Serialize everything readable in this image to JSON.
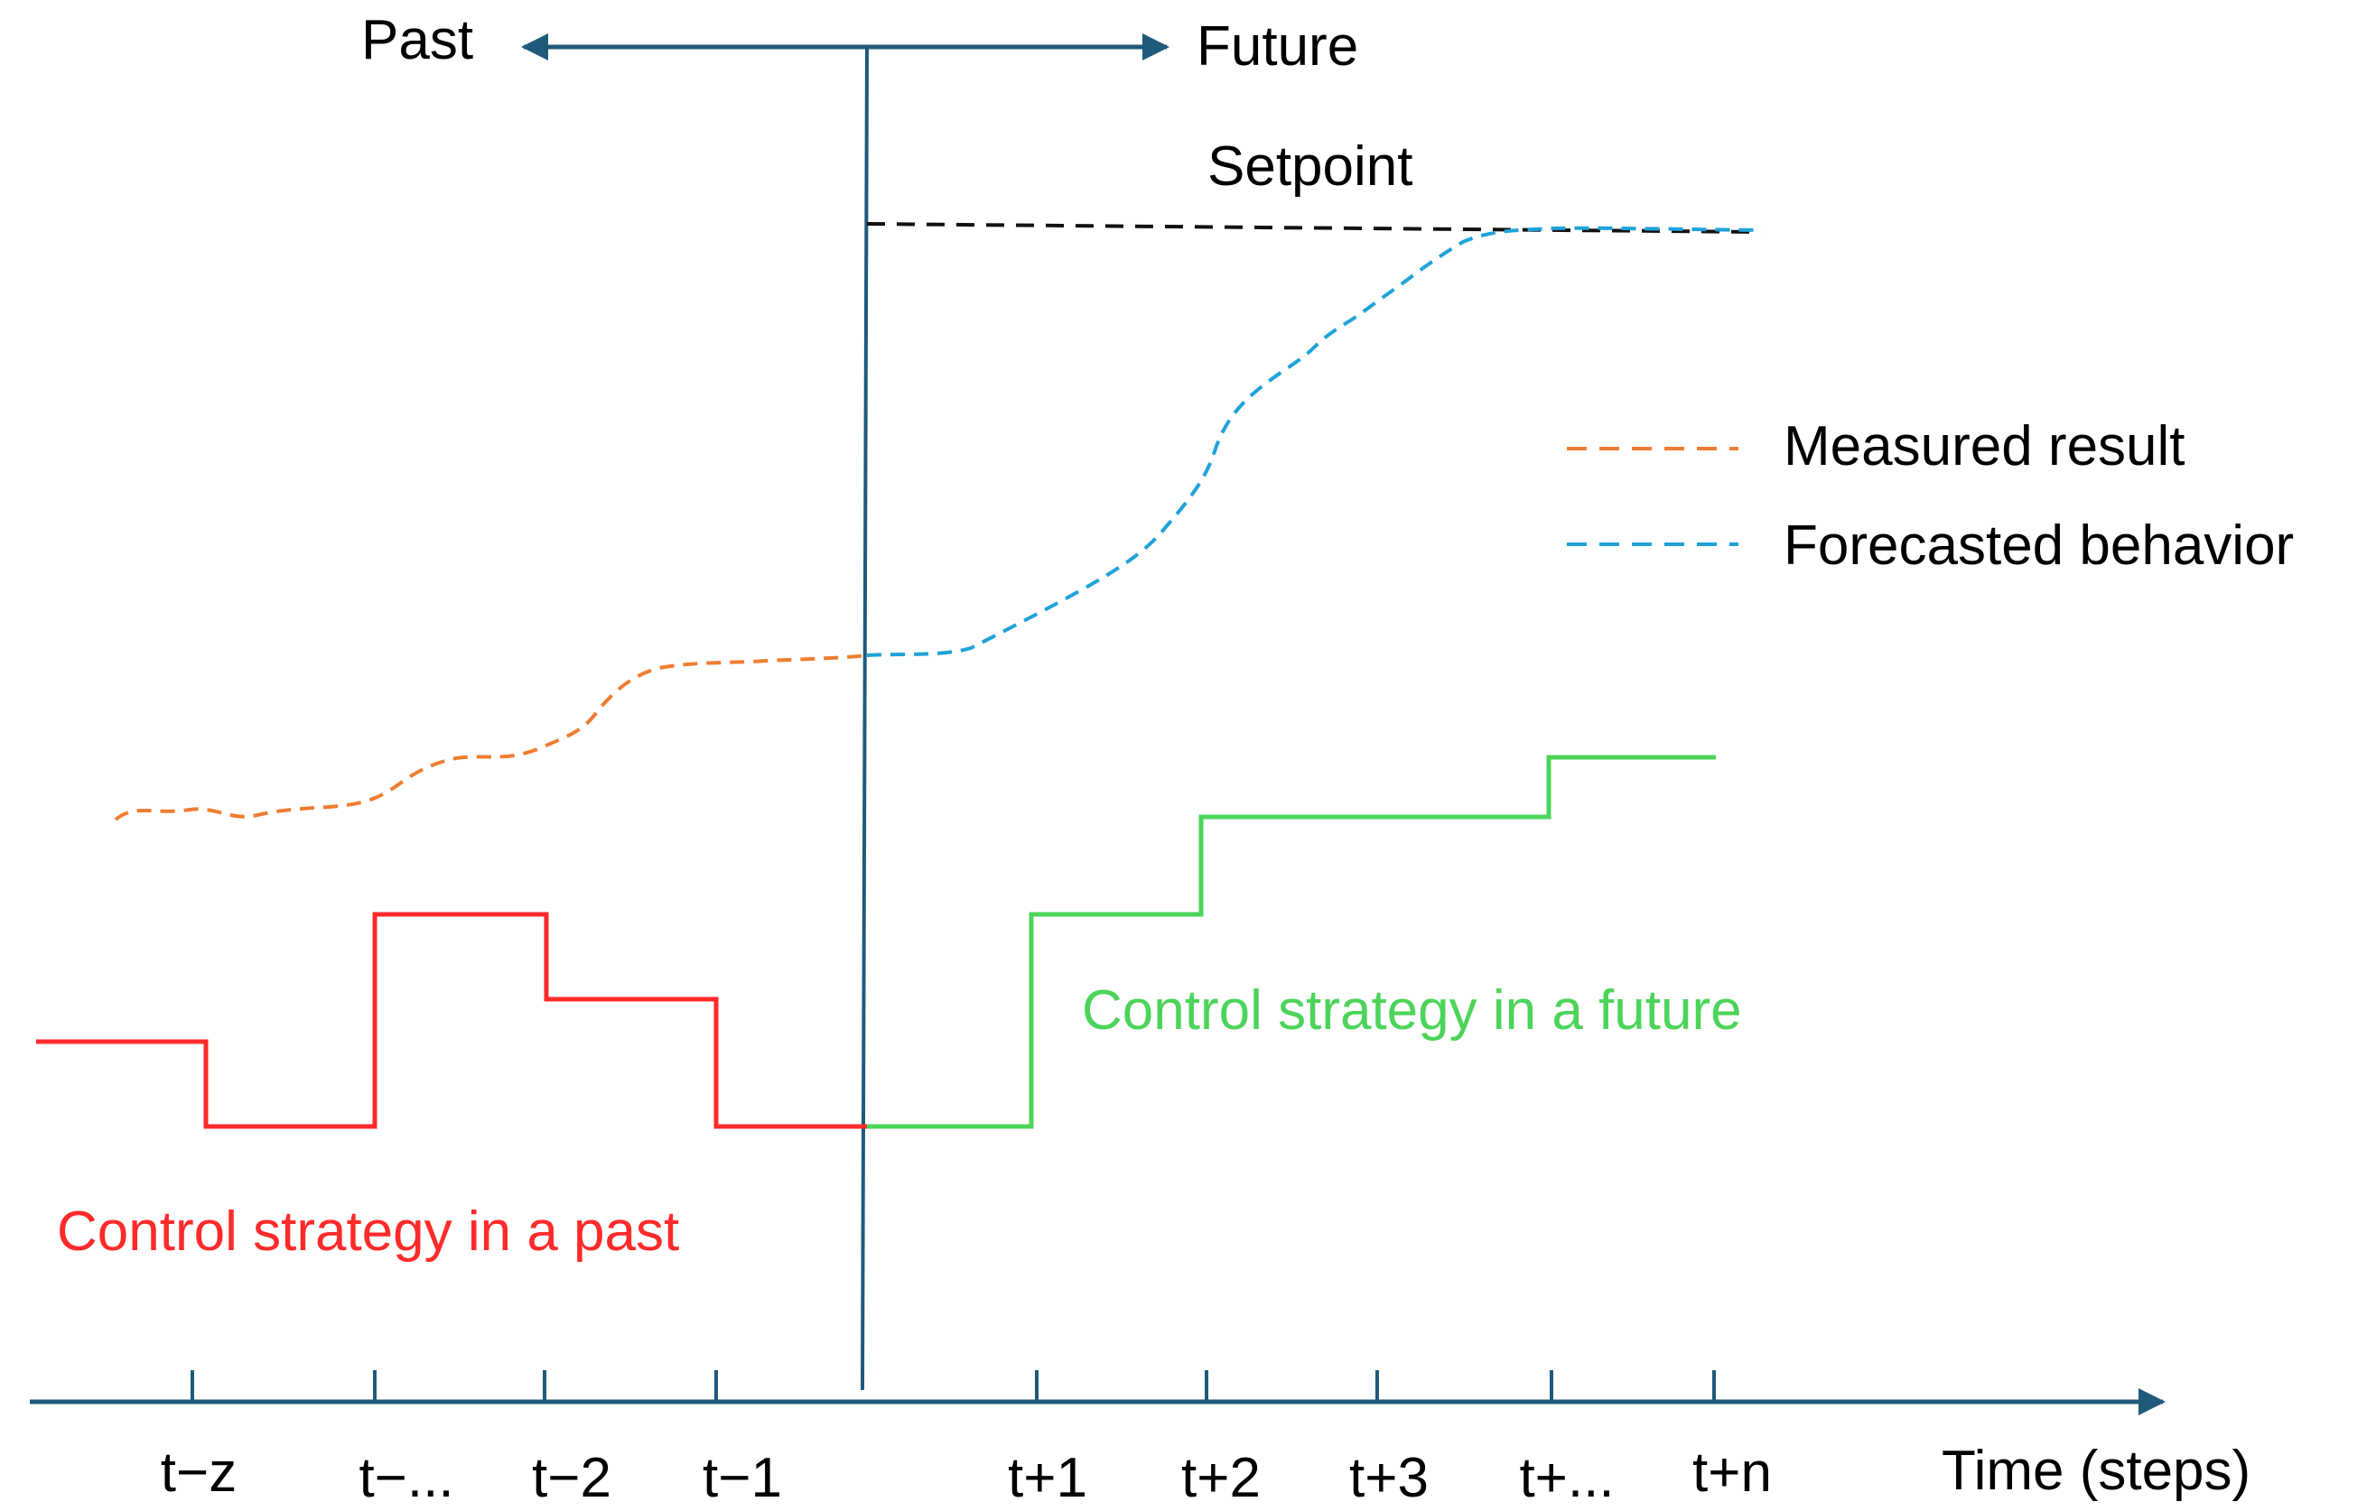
{
  "header": {
    "past_label": "Past",
    "future_label": "Future"
  },
  "setpoint_label": "Setpoint",
  "legend": {
    "items": [
      {
        "label": "Measured result",
        "color": "#ED7D31"
      },
      {
        "label": "Forecasted behavior",
        "color": "#1FA2D8"
      }
    ]
  },
  "annotations": {
    "past_control": "Control strategy in a past",
    "future_control": "Control strategy in a future"
  },
  "axis": {
    "label": "Time (steps)",
    "ticks": [
      "t−z",
      "t−...",
      "t−2",
      "t−1",
      "t+1",
      "t+2",
      "t+3",
      "t+...",
      "t+n"
    ]
  },
  "colors": {
    "axis": "#1F5A7A",
    "past_control": "#FF2A2A",
    "future_control": "#4CD45A",
    "setpoint": "#111111"
  }
}
